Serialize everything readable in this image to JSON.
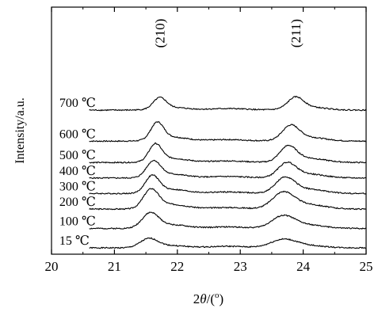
{
  "chart_data": {
    "type": "line",
    "title": "",
    "xlabel_prefix": "2",
    "xlabel_symbol": "θ",
    "xlabel_suffix": "/(",
    "xlabel_unit": "o",
    "xlabel_close": ")",
    "ylabel": "Intensity/a.u.",
    "xlim": [
      20,
      25
    ],
    "xticks": [
      20,
      21,
      22,
      23,
      24,
      25
    ],
    "yticks_shown": false,
    "annotations": [
      {
        "text": "(210)",
        "x": 21.72
      },
      {
        "text": "(211)",
        "x": 23.88
      }
    ],
    "series": [
      {
        "name": "15 ℃",
        "baseline": 0.0,
        "p1": [
          21.55,
          0.45,
          0.14
        ],
        "p2": [
          23.68,
          0.4,
          0.2
        ],
        "noise_seed": 1
      },
      {
        "name": "100 ℃",
        "baseline": 1.0,
        "p1": [
          21.57,
          0.75,
          0.13
        ],
        "p2": [
          23.68,
          0.6,
          0.18
        ],
        "noise_seed": 2
      },
      {
        "name": "200 ℃",
        "baseline": 2.0,
        "p1": [
          21.58,
          0.95,
          0.12
        ],
        "p2": [
          23.68,
          0.8,
          0.17
        ],
        "noise_seed": 3
      },
      {
        "name": "300 ℃",
        "baseline": 2.8,
        "p1": [
          21.6,
          0.85,
          0.11
        ],
        "p2": [
          23.71,
          0.75,
          0.15
        ],
        "noise_seed": 4
      },
      {
        "name": "400 ℃",
        "baseline": 3.6,
        "p1": [
          21.62,
          0.8,
          0.11
        ],
        "p2": [
          23.74,
          0.7,
          0.14
        ],
        "noise_seed": 5
      },
      {
        "name": "500 ℃",
        "baseline": 4.4,
        "p1": [
          21.65,
          0.85,
          0.1
        ],
        "p2": [
          23.76,
          0.75,
          0.13
        ],
        "noise_seed": 6
      },
      {
        "name": "600 ℃",
        "baseline": 5.5,
        "p1": [
          21.68,
          0.85,
          0.1
        ],
        "p2": [
          23.8,
          0.7,
          0.13
        ],
        "noise_seed": 7
      },
      {
        "name": "700 ℃",
        "baseline": 7.1,
        "p1": [
          21.72,
          0.55,
          0.1
        ],
        "p2": [
          23.88,
          0.55,
          0.12
        ],
        "noise_seed": 8
      }
    ],
    "label_x": 20.2
  }
}
